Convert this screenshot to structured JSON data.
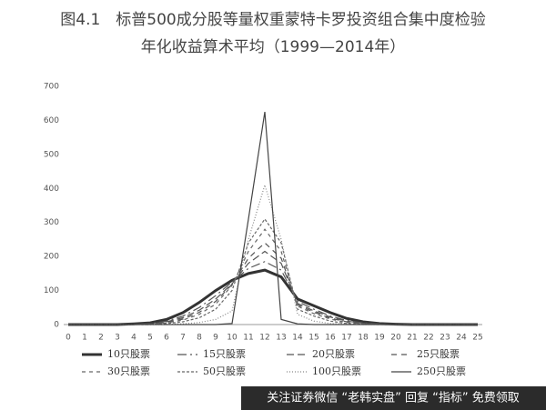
{
  "chart_data": {
    "type": "line",
    "title": "图4.1　标普500成分股等量权重蒙特卡罗投资组合集中度检验",
    "subtitle": "年化收益算术平均（1999—2014年）",
    "categories": [
      "0",
      "1",
      "2",
      "3",
      "4",
      "5",
      "6",
      "7",
      "8",
      "9",
      "10",
      "11",
      "12",
      "13",
      "14",
      "15",
      "16",
      "17",
      "18",
      "19",
      "20",
      "21",
      "22",
      "23",
      "24",
      "25"
    ],
    "ylim": [
      0,
      700
    ],
    "yticks": [
      0,
      100,
      200,
      300,
      400,
      500,
      600,
      700
    ],
    "series": [
      {
        "name": "10只股票",
        "color": "#333333",
        "width": 3,
        "dash": "none",
        "values": [
          0,
          0,
          0,
          0,
          2,
          5,
          15,
          35,
          65,
          100,
          130,
          150,
          160,
          140,
          75,
          55,
          35,
          18,
          8,
          3,
          1,
          0,
          0,
          0,
          0,
          0
        ]
      },
      {
        "name": "15只股票",
        "color": "#555555",
        "width": 1.2,
        "dash": "10 4 2 4",
        "values": [
          0,
          0,
          0,
          0,
          1,
          3,
          10,
          25,
          50,
          85,
          125,
          165,
          185,
          160,
          68,
          45,
          25,
          12,
          5,
          2,
          0,
          0,
          0,
          0,
          0,
          0
        ]
      },
      {
        "name": "20只股票",
        "color": "#555555",
        "width": 1.2,
        "dash": "8 4",
        "values": [
          0,
          0,
          0,
          0,
          1,
          2,
          8,
          20,
          42,
          75,
          120,
          180,
          215,
          180,
          62,
          40,
          22,
          10,
          4,
          1,
          0,
          0,
          0,
          0,
          0,
          0
        ]
      },
      {
        "name": "25只股票",
        "color": "#555555",
        "width": 1.2,
        "dash": "6 5",
        "values": [
          0,
          0,
          0,
          0,
          0,
          2,
          6,
          16,
          36,
          68,
          118,
          195,
          240,
          195,
          58,
          36,
          19,
          8,
          3,
          1,
          0,
          0,
          0,
          0,
          0,
          0
        ]
      },
      {
        "name": "30只股票",
        "color": "#666666",
        "width": 1.2,
        "dash": "4 4",
        "values": [
          0,
          0,
          0,
          0,
          0,
          1,
          5,
          13,
          30,
          60,
          115,
          215,
          280,
          215,
          54,
          32,
          16,
          6,
          2,
          0,
          0,
          0,
          0,
          0,
          0,
          0
        ]
      },
      {
        "name": "50只股票",
        "color": "#666666",
        "width": 1.2,
        "dash": "3 2",
        "values": [
          0,
          0,
          0,
          0,
          0,
          0,
          3,
          8,
          20,
          45,
          100,
          240,
          310,
          240,
          45,
          25,
          10,
          3,
          1,
          0,
          0,
          0,
          0,
          0,
          0,
          0
        ]
      },
      {
        "name": "100只股票",
        "color": "#888888",
        "width": 1.2,
        "dash": "1 2",
        "values": [
          0,
          0,
          0,
          0,
          0,
          0,
          0,
          2,
          6,
          15,
          40,
          250,
          410,
          250,
          30,
          10,
          3,
          1,
          0,
          0,
          0,
          0,
          0,
          0,
          0,
          0
        ]
      },
      {
        "name": "250只股票",
        "color": "#444444",
        "width": 1.2,
        "dash": "none",
        "values": [
          0,
          0,
          0,
          0,
          0,
          0,
          0,
          0,
          0,
          0,
          3,
          310,
          625,
          15,
          2,
          0,
          0,
          0,
          0,
          0,
          0,
          0,
          0,
          0,
          0,
          0
        ]
      }
    ]
  },
  "watermark": "关注证券微信 “老韩实盘” 回复 “指标” 免费领取"
}
